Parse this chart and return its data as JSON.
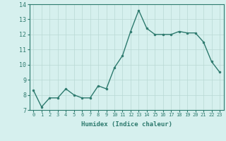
{
  "x": [
    0,
    1,
    2,
    3,
    4,
    5,
    6,
    7,
    8,
    9,
    10,
    11,
    12,
    13,
    14,
    15,
    16,
    17,
    18,
    19,
    20,
    21,
    22,
    23
  ],
  "y": [
    8.3,
    7.2,
    7.8,
    7.8,
    8.4,
    8.0,
    7.8,
    7.8,
    8.6,
    8.4,
    9.8,
    10.6,
    12.2,
    13.6,
    12.4,
    12.0,
    12.0,
    12.0,
    12.2,
    12.1,
    12.1,
    11.5,
    10.2,
    9.5
  ],
  "line_color": "#2d7a6e",
  "marker": "o",
  "marker_size": 2,
  "bg_color": "#d6f0ee",
  "grid_color": "#b8d8d4",
  "xlabel": "Humidex (Indice chaleur)",
  "xlim": [
    -0.5,
    23.5
  ],
  "ylim": [
    7,
    14
  ],
  "xticks": [
    0,
    1,
    2,
    3,
    4,
    5,
    6,
    7,
    8,
    9,
    10,
    11,
    12,
    13,
    14,
    15,
    16,
    17,
    18,
    19,
    20,
    21,
    22,
    23
  ],
  "yticks": [
    7,
    8,
    9,
    10,
    11,
    12,
    13,
    14
  ],
  "tick_color": "#2d7a6e",
  "label_color": "#2d7a6e",
  "spine_color": "#2d7a6e",
  "tick_fontsize": 5,
  "xlabel_fontsize": 6.5
}
